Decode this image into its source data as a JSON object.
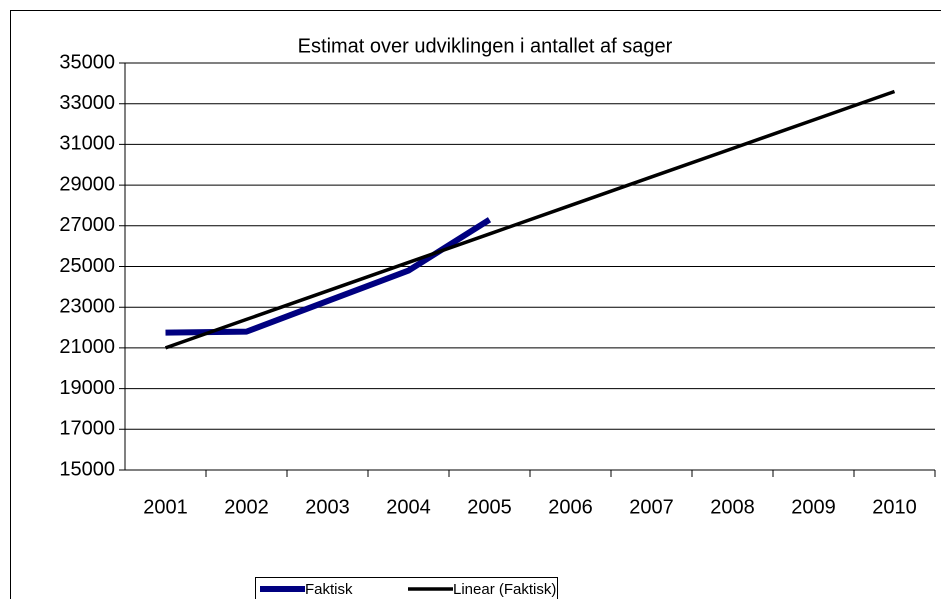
{
  "chart_data": {
    "type": "line",
    "title": "Estimat over udviklingen i antallet af sager",
    "categories": [
      "2001",
      "2002",
      "2003",
      "2004",
      "2005",
      "2006",
      "2007",
      "2008",
      "2009",
      "2010"
    ],
    "series": [
      {
        "name": "Faktisk",
        "color": "#000080",
        "values": [
          21750,
          21800,
          23300,
          24800,
          27300,
          null,
          null,
          null,
          null,
          null
        ]
      },
      {
        "name": "Linear (Faktisk)",
        "color": "#000000",
        "values": [
          21000,
          22400,
          23800,
          25200,
          26600,
          28000,
          29400,
          30800,
          32200,
          33600
        ]
      }
    ],
    "ylim": [
      15000,
      35000
    ],
    "yticks": [
      15000,
      17000,
      19000,
      21000,
      23000,
      25000,
      27000,
      29000,
      31000,
      33000,
      35000
    ],
    "grid": true,
    "legend": "bottom"
  }
}
